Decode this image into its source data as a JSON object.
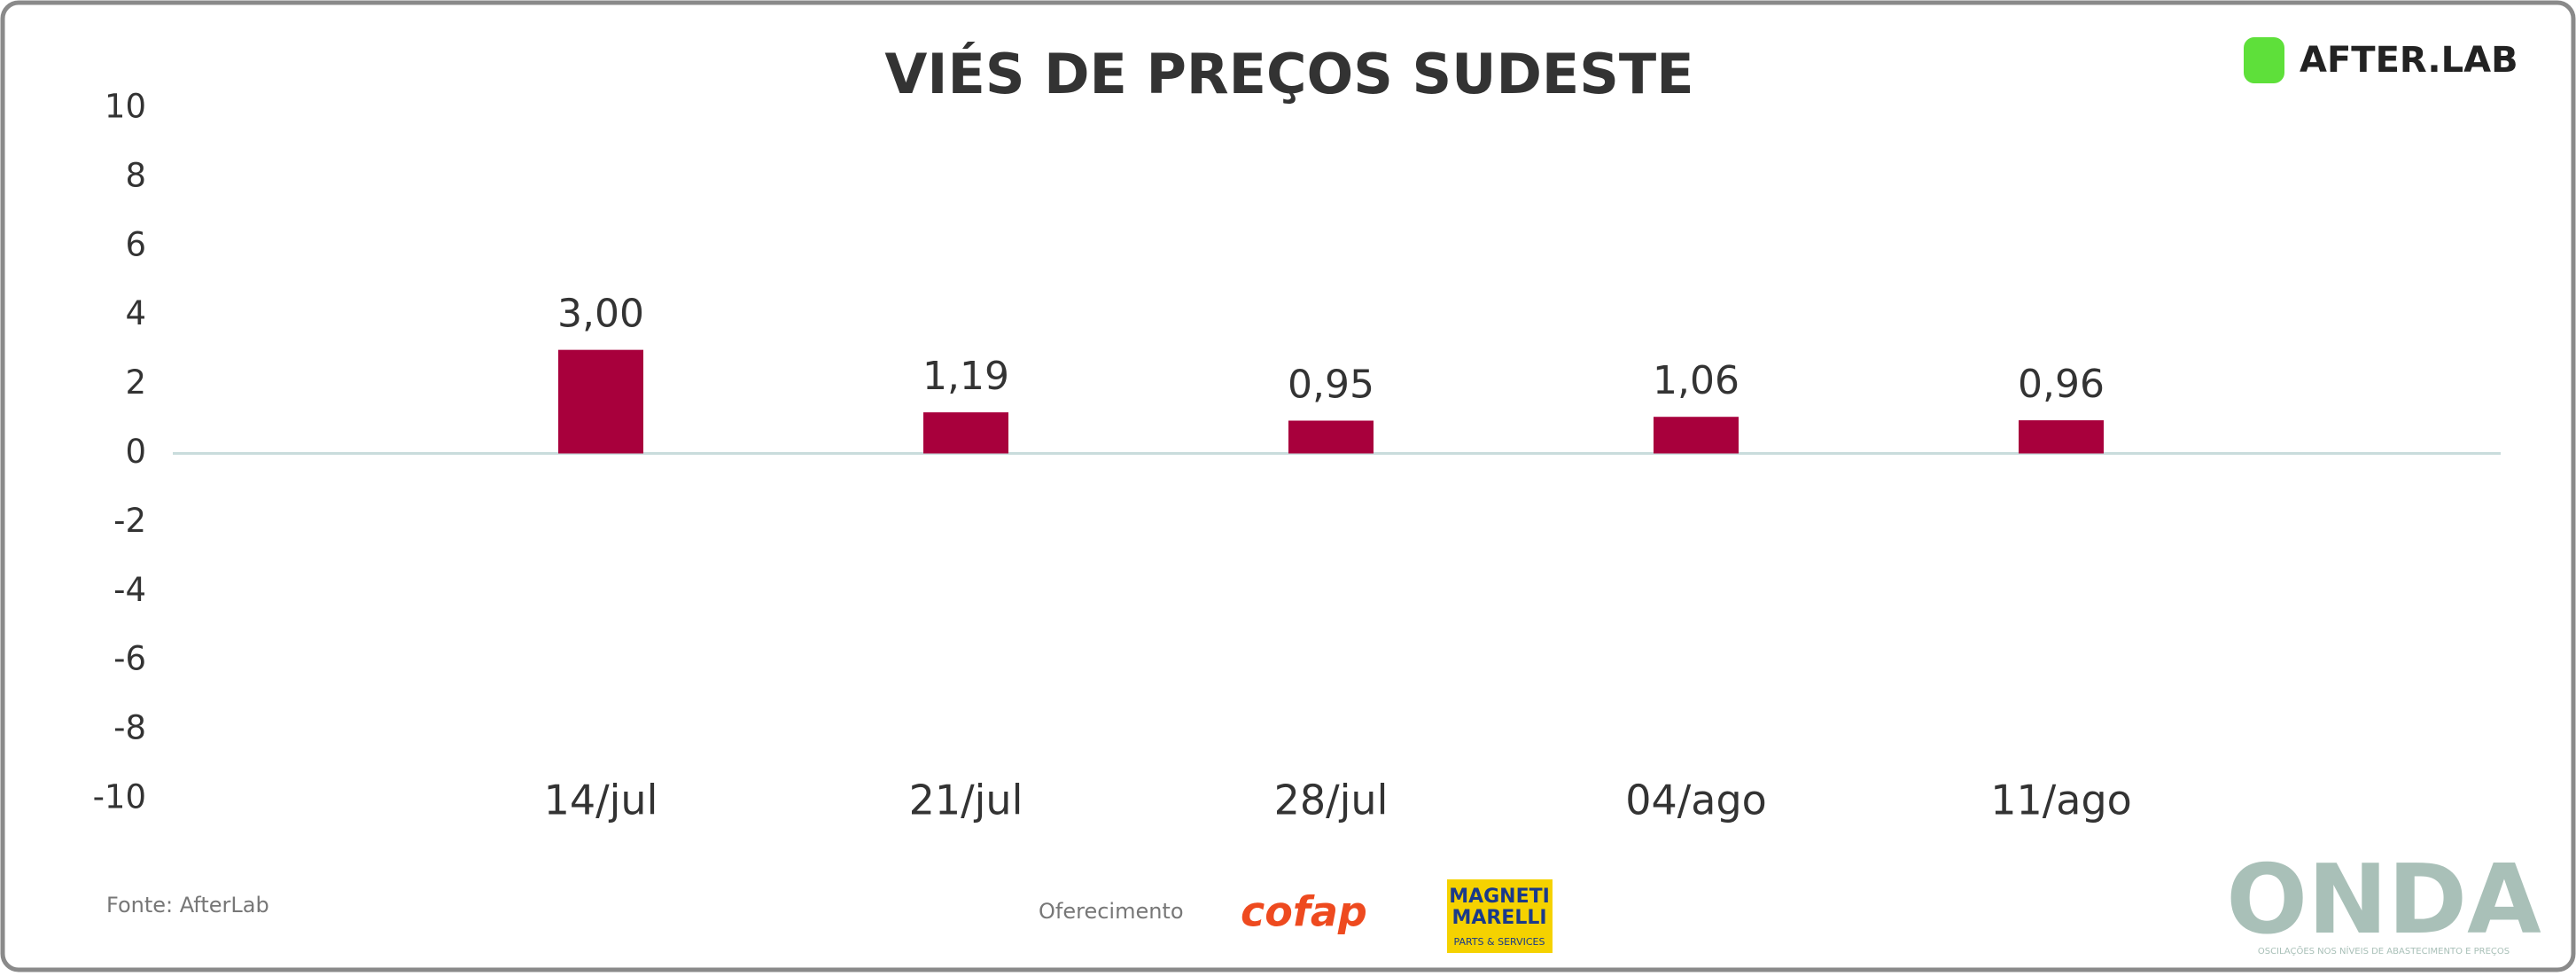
{
  "chart_data": {
    "type": "bar",
    "title": "VIÉS DE PREÇOS SUDESTE",
    "categories": [
      "14/jul",
      "21/jul",
      "28/jul",
      "04/ago",
      "11/ago"
    ],
    "values": [
      3.0,
      1.19,
      0.95,
      1.06,
      0.96
    ],
    "value_labels": [
      "3,00",
      "1,19",
      "0,95",
      "1,06",
      "0,96"
    ],
    "color": "#a8003c",
    "ylim": [
      -10,
      10
    ],
    "yticks": [
      -10,
      -8,
      -6,
      -4,
      -2,
      0,
      2,
      4,
      6,
      8,
      10
    ],
    "grid": false
  },
  "branding": {
    "logo": "AFTER.LAB",
    "source": "Fonte: AfterLab",
    "sponsor_label": "Oferecimento",
    "sponsor_1": "cofap",
    "sponsor_2_line1": "MAGNETI",
    "sponsor_2_line2": "MARELLI",
    "sponsor_2_tag": "PARTS & SERVICES",
    "brand": "ONDA",
    "brand_tagline": "OSCILAÇÕES NOS NÍVEIS DE ABASTECIMENTO E PREÇOS"
  }
}
